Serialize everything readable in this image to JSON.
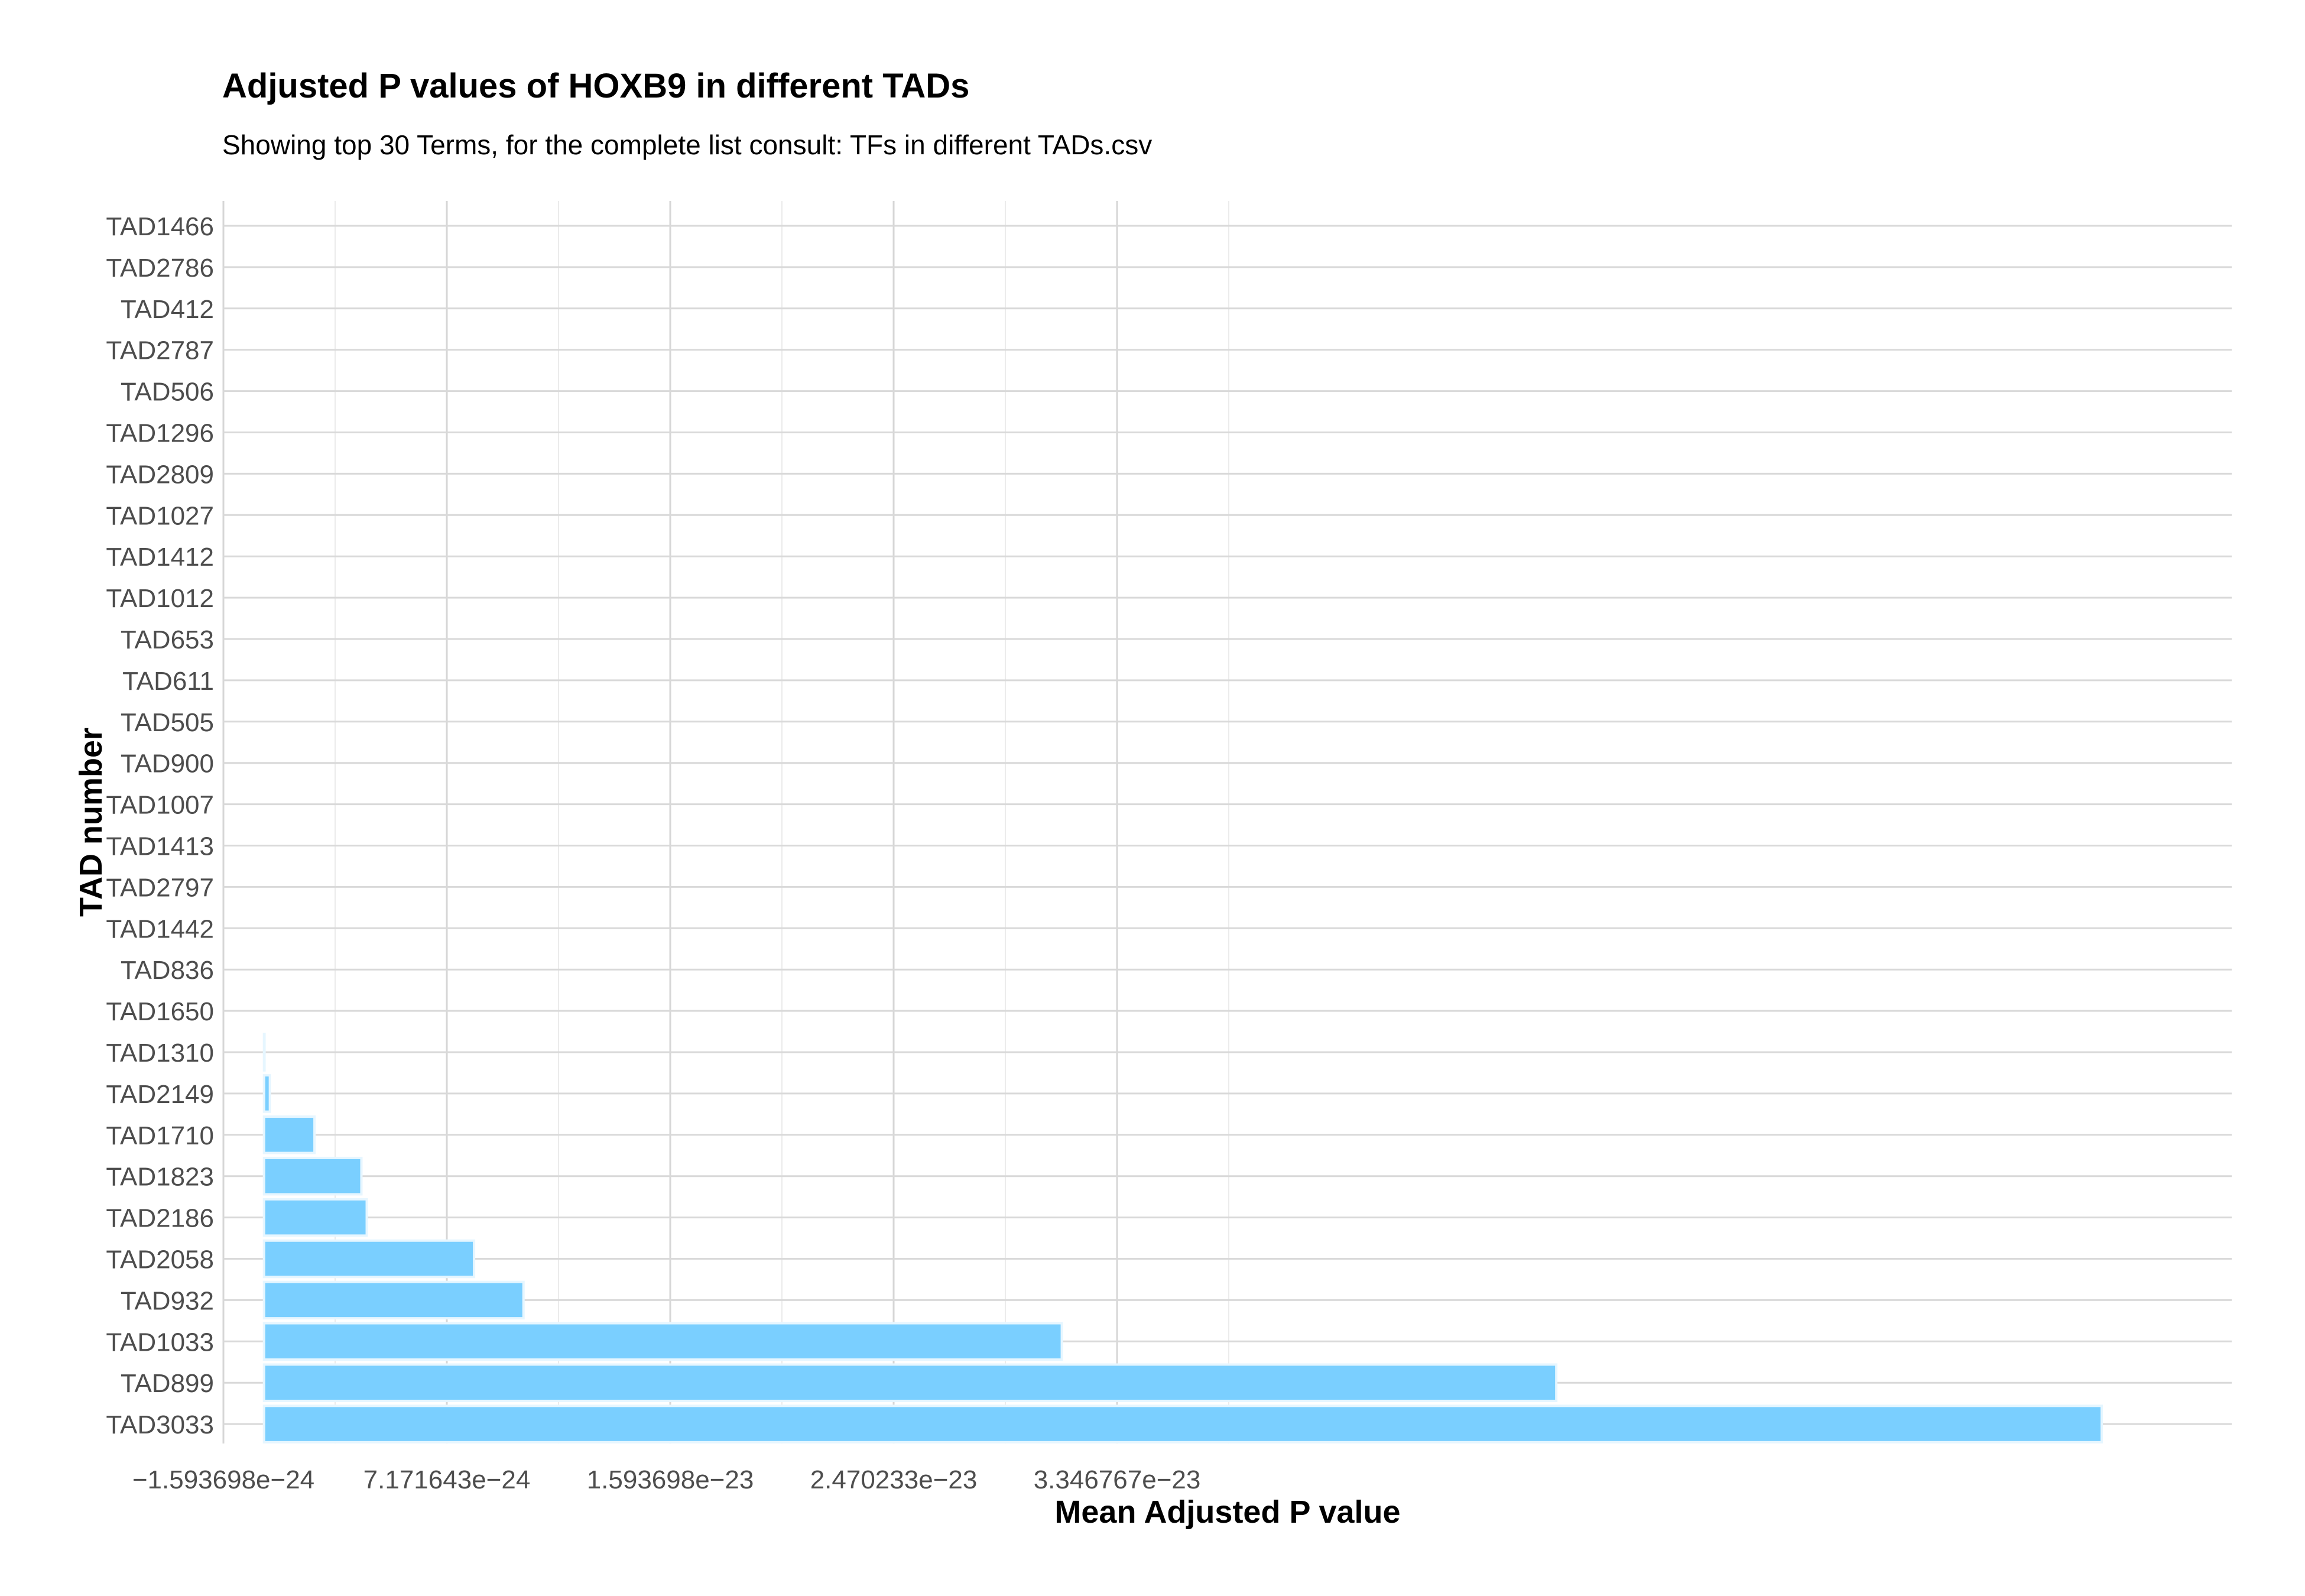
{
  "chart_data": {
    "type": "bar",
    "orientation": "horizontal",
    "title": "Adjusted P values of HOXB9 in different TADs",
    "subtitle": "Showing top 30 Terms, for the complete list consult: TFs in different TADs.csv",
    "xlabel": "Mean Adjusted P value",
    "ylabel": "TAD number",
    "categories": [
      "TAD1466",
      "TAD2786",
      "TAD412",
      "TAD2787",
      "TAD506",
      "TAD1296",
      "TAD2809",
      "TAD1027",
      "TAD1412",
      "TAD1012",
      "TAD653",
      "TAD611",
      "TAD505",
      "TAD900",
      "TAD1007",
      "TAD1413",
      "TAD2797",
      "TAD1442",
      "TAD836",
      "TAD1650",
      "TAD1310",
      "TAD2149",
      "TAD1710",
      "TAD1823",
      "TAD2186",
      "TAD2058",
      "TAD932",
      "TAD1033",
      "TAD899",
      "TAD3033"
    ],
    "values": [
      0,
      0,
      0,
      0,
      0,
      0,
      0,
      0,
      0,
      0,
      0,
      0,
      0,
      0,
      0,
      0,
      0,
      0,
      0,
      0,
      2e-26,
      2.3e-25,
      1.98e-24,
      3.82e-24,
      4.03e-24,
      8.24e-24,
      1.018e-23,
      3.13e-23,
      5.07e-23,
      7.21e-23
    ],
    "xlim": [
      -1.593698e-24,
      7.72e-23
    ],
    "xticks": [
      -1.593698e-24,
      7.171643e-24,
      1.593698e-23,
      2.470233e-23,
      3.346767e-23
    ],
    "xtick_labels": [
      "−1.593698e−24",
      "7.171643e−24",
      "1.593698e−23",
      "2.470233e−23",
      "3.346767e−23"
    ],
    "grid": true,
    "bar_color": "#7ACFFF",
    "bar_edge_color": "#E6F6FF"
  }
}
